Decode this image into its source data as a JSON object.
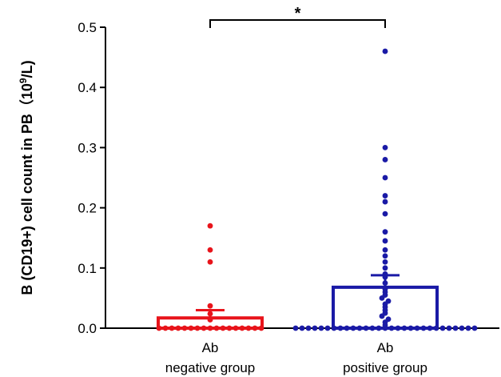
{
  "chart_data": {
    "type": "bar",
    "ylabel_main": "B (CD19+) cell count in PB（10",
    "ylabel_sup": "9",
    "ylabel_end": "/L)",
    "ylim": [
      0,
      0.5
    ],
    "yticks": [
      0.0,
      0.1,
      0.2,
      0.3,
      0.4,
      0.5
    ],
    "ytick_labels": [
      "0.0",
      "0.1",
      "0.2",
      "0.3",
      "0.4",
      "0.5"
    ],
    "significance": "*",
    "series": [
      {
        "category_line1": "Ab",
        "category_line2": "negative group",
        "mean": 0.017,
        "error_upper": 0.03,
        "color": "#e8141b",
        "points": [
          0.17,
          0.13,
          0.11,
          0.037,
          0.024,
          0.014,
          0.0,
          0.0,
          0.0,
          0.0,
          0.0,
          0.0,
          0.0,
          0.0,
          0.0,
          0.0,
          0.0,
          0.0,
          0.0,
          0.0,
          0.0,
          0.0,
          0.0
        ]
      },
      {
        "category_line1": "Ab",
        "category_line2": "positive group",
        "mean": 0.068,
        "error_upper": 0.088,
        "color": "#1a1aa6",
        "points": [
          0.46,
          0.3,
          0.28,
          0.25,
          0.22,
          0.21,
          0.19,
          0.16,
          0.145,
          0.13,
          0.12,
          0.11,
          0.1,
          0.09,
          0.085,
          0.075,
          0.065,
          0.06,
          0.055,
          0.05,
          0.045,
          0.04,
          0.035,
          0.03,
          0.025,
          0.02,
          0.015,
          0.01,
          0.005,
          0.0,
          0.0,
          0.0,
          0.0,
          0.0,
          0.0,
          0.0,
          0.0,
          0.0,
          0.0,
          0.0,
          0.0,
          0.0,
          0.0,
          0.0,
          0.0,
          0.0,
          0.0,
          0.0,
          0.0,
          0.0,
          0.0,
          0.0,
          0.0,
          0.0,
          0.0,
          0.0,
          0.0,
          0.0
        ]
      }
    ]
  }
}
